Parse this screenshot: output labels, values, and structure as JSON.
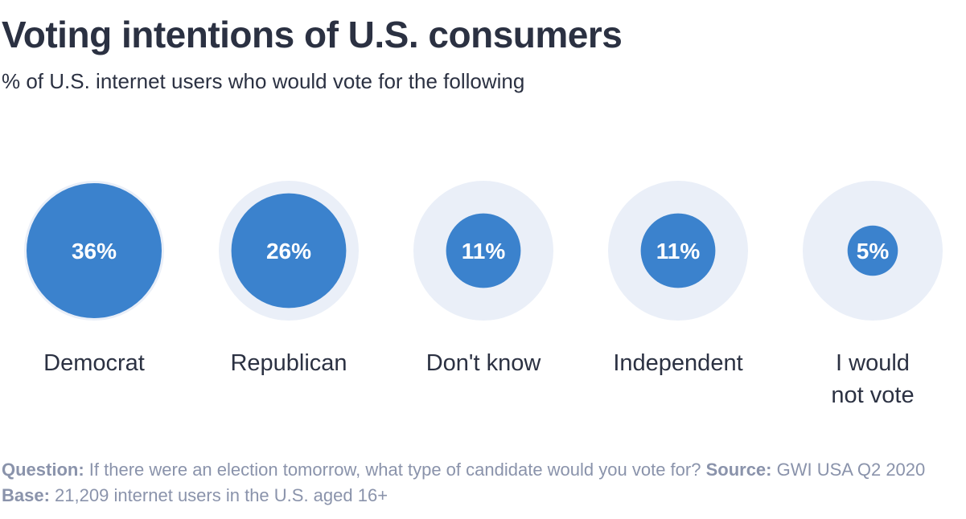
{
  "title": "Voting intentions of U.S. consumers",
  "subtitle": "% of U.S. internet users who would vote for the following",
  "colors": {
    "bubble": "#3b82cd",
    "track": "#eaeff8",
    "text": "#2b3142",
    "footnote": "#8a93ab"
  },
  "chart_data": {
    "type": "bubble",
    "title": "Voting intentions of U.S. consumers",
    "subtitle": "% of U.S. internet users who would vote for the following",
    "unit": "%",
    "categories": [
      "Democrat",
      "Republican",
      "Don't know",
      "Independent",
      "I would not vote"
    ],
    "values": [
      36,
      26,
      11,
      11,
      5
    ],
    "value_labels": [
      "36%",
      "26%",
      "11%",
      "11%",
      "5%"
    ],
    "max": 36
  },
  "footnote": {
    "question_label": "Question:",
    "question_text": "If there were an election tomorrow, what type of candidate would you vote for?",
    "source_label": "Source:",
    "source_text": "GWI USA Q2 2020",
    "base_label": "Base:",
    "base_text": "21,209 internet users in the U.S. aged 16+"
  }
}
